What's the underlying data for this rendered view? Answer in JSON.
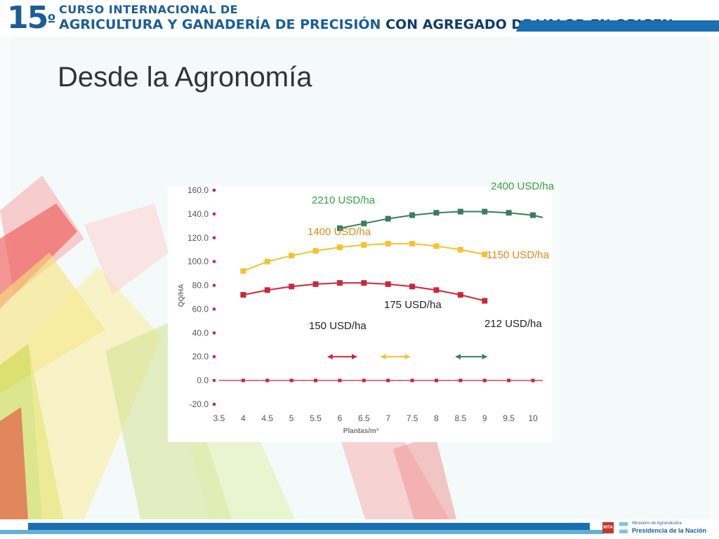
{
  "header": {
    "number": "15",
    "ordinal": "º",
    "line1": "CURSO INTERNACIONAL DE",
    "line2_a": "AGRICULTURA Y GANADERÍA DE PRECISIÓN",
    "line2_b": "CON AGREGADO DE VALOR EN ORIGEN"
  },
  "slide": {
    "title": "Desde la Agronomía"
  },
  "footer": {
    "inta": "INTA",
    "ministry": "Ministerio de Agroindustria",
    "presidencia": "Presidencia de la Nación"
  },
  "chart_data": {
    "type": "line",
    "ylabel": "QQ/HA",
    "xlabel": "Plantas/m²",
    "xlim": [
      3.5,
      10
    ],
    "ylim": [
      -20,
      160
    ],
    "xticks": [
      "3.5",
      "4",
      "4.5",
      "5",
      "5.5",
      "6",
      "6.5",
      "7",
      "7.5",
      "8",
      "8.5",
      "9",
      "9.5",
      "10"
    ],
    "yticks": [
      "-20.0",
      "0.0",
      "20.0",
      "40.0",
      "60.0",
      "80.0",
      "100.0",
      "120.0",
      "140.0",
      "160.0"
    ],
    "grid": false,
    "colors": {
      "red": "#c8283c",
      "yellow": "#f2c230",
      "green": "#3a7d5a"
    },
    "series": [
      {
        "color": "#c8283c",
        "x": [
          4,
          4.5,
          5,
          5.5,
          6,
          6.5,
          7,
          7.5,
          8,
          8.5,
          9
        ],
        "y": [
          72,
          76,
          79,
          81,
          82,
          82,
          81,
          79,
          76,
          72,
          67
        ]
      },
      {
        "color": "#f2c230",
        "x": [
          4,
          4.5,
          5,
          5.5,
          6,
          6.5,
          7,
          7.5,
          8,
          8.5,
          9
        ],
        "y": [
          92,
          100,
          105,
          109,
          112,
          114,
          115,
          115,
          113,
          110,
          106
        ]
      },
      {
        "color": "#3a7d5a",
        "x": [
          6,
          6.5,
          7,
          7.5,
          8,
          8.5,
          9,
          9.5,
          10
        ],
        "y": [
          128,
          132,
          136,
          139,
          141,
          142,
          142,
          141,
          139
        ]
      },
      {
        "color": "#c8283c",
        "x": [
          4,
          4.5,
          5,
          5.5,
          6,
          6.5,
          7,
          7.5,
          8,
          8.5,
          9,
          9.5,
          10
        ],
        "y": [
          0,
          0,
          0,
          0,
          0,
          0,
          0,
          0,
          0,
          0,
          0,
          0,
          0
        ]
      }
    ],
    "ranges": [
      {
        "color": "#c8283c",
        "x": [
          5.75,
          6.35
        ],
        "y": 20
      },
      {
        "color": "#f2c230",
        "x": [
          6.85,
          7.45
        ],
        "y": 20
      },
      {
        "color": "#3a7d5a",
        "x": [
          8.4,
          9.05
        ],
        "y": 20
      }
    ],
    "annotations": [
      {
        "text": "2400 USD/ha",
        "color": "#3a9d4a"
      },
      {
        "text": "2210 USD/ha",
        "color": "#3a9d4a"
      },
      {
        "text": "1400 USD/ha",
        "color": "#e08a1a"
      },
      {
        "text": "1150 USD/ha",
        "color": "#e08a1a"
      },
      {
        "text": "175 USD/ha",
        "color": "#222222"
      },
      {
        "text": "150 USD/ha",
        "color": "#222222"
      },
      {
        "text": "212 USD/ha",
        "color": "#222222"
      }
    ]
  }
}
